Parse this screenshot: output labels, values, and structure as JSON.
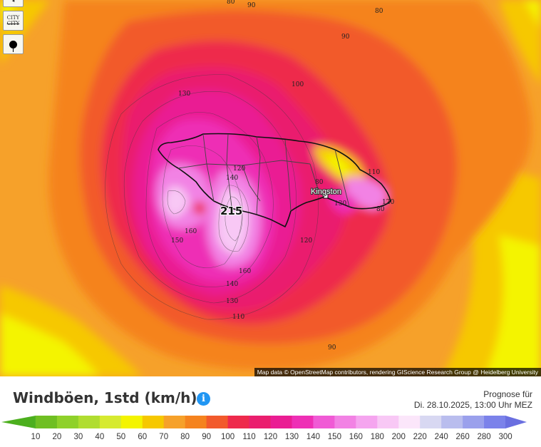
{
  "map": {
    "contour_labels": [
      "80",
      "90",
      "80",
      "90",
      "100",
      "130",
      "120",
      "140",
      "80",
      "110",
      "120",
      "160",
      "150",
      "160",
      "140",
      "130",
      "110",
      "90",
      "130",
      "80",
      "120"
    ],
    "city_label": "Kingston",
    "max_value": "215",
    "attribution": "Map data © OpenStreetMap contributors, rendering GIScience Research Group @ Heidelberg University"
  },
  "controls": {
    "city_label": "CITY",
    "city_label2": "CITY"
  },
  "legend": {
    "title": "Windböen, 1std (km/h)",
    "info_icon": "i",
    "forecast_line1": "Prognose für",
    "forecast_line2": "Di. 28.10.2025, 13:00 Uhr MEZ",
    "ticks": [
      "10",
      "20",
      "30",
      "40",
      "50",
      "60",
      "70",
      "80",
      "90",
      "100",
      "110",
      "120",
      "130",
      "140",
      "150",
      "160",
      "180",
      "200",
      "220",
      "240",
      "260",
      "280",
      "300"
    ],
    "colors": [
      "#4caf1e",
      "#6fbf22",
      "#8fd12a",
      "#b0dd30",
      "#d6ea30",
      "#f4f400",
      "#f6c800",
      "#f6a12a",
      "#f5831e",
      "#f25a2c",
      "#ee2a4c",
      "#ea1e6e",
      "#ea1d93",
      "#ee2fb5",
      "#f05ad5",
      "#f282e4",
      "#f5a5ef",
      "#f8c8f5",
      "#fbe6fa",
      "#d8d8f2",
      "#b9bdee",
      "#9aa0ec",
      "#7b82ea",
      "#6a6fe0"
    ]
  }
}
